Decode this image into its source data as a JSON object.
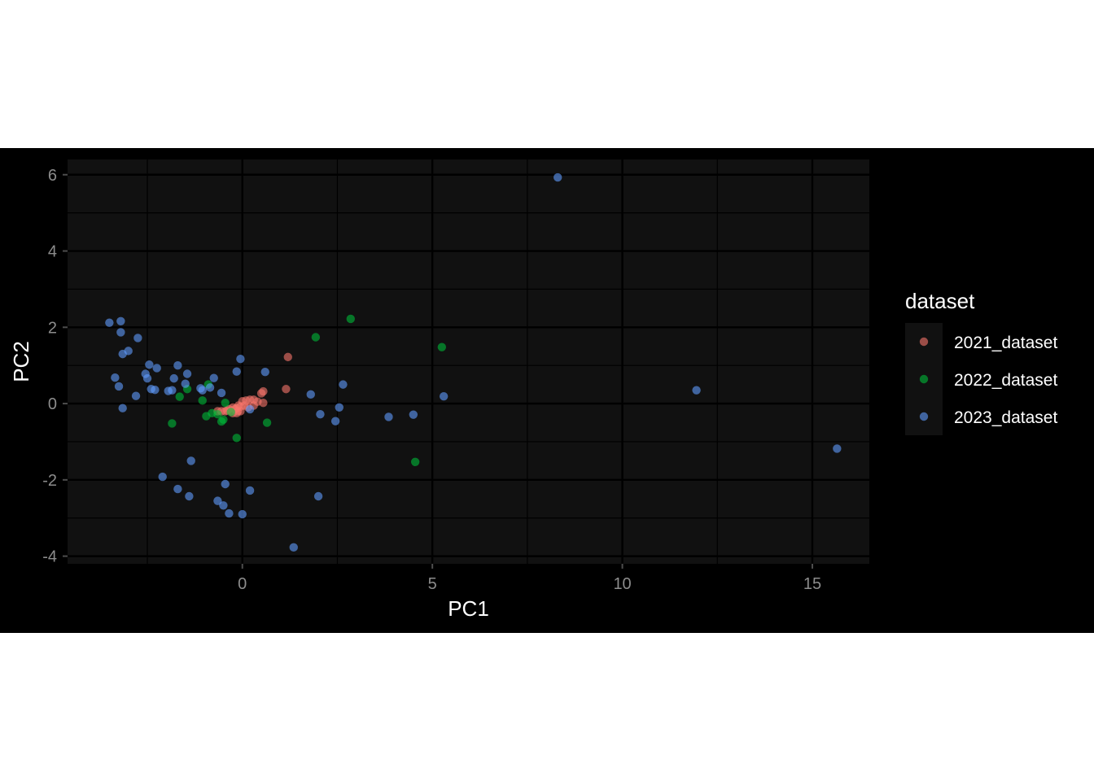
{
  "chart_data": {
    "type": "scatter",
    "xlabel": "PC1",
    "ylabel": "PC2",
    "xlim": [
      -4.6,
      16.5
    ],
    "ylim": [
      -4.2,
      6.4
    ],
    "x_ticks": [
      0,
      5,
      10,
      15
    ],
    "y_ticks": [
      -4,
      -2,
      0,
      2,
      4,
      6
    ],
    "x_tick_labels": [
      "0",
      "5",
      "10",
      "15"
    ],
    "y_tick_labels": [
      "-4",
      "-2",
      "0",
      "2",
      "4",
      "6"
    ],
    "grid": true,
    "background": "#000000",
    "panel_background": "#111111",
    "legend": {
      "title": "dataset",
      "position": "right"
    },
    "series": [
      {
        "name": "2021_dataset",
        "color": "#F8766D",
        "points": [
          [
            1.2,
            1.22
          ],
          [
            1.15,
            0.38
          ],
          [
            0.55,
            0.32
          ],
          [
            0.5,
            0.27
          ],
          [
            0.55,
            0.02
          ],
          [
            0.4,
            0.05
          ],
          [
            0.3,
            0.1
          ],
          [
            0.2,
            0.1
          ],
          [
            0.1,
            0.08
          ],
          [
            0.0,
            0.06
          ],
          [
            0.05,
            -0.05
          ],
          [
            -0.05,
            -0.08
          ],
          [
            -0.1,
            -0.05
          ],
          [
            -0.15,
            -0.12
          ],
          [
            -0.2,
            -0.15
          ],
          [
            -0.25,
            -0.1
          ],
          [
            -0.3,
            -0.2
          ],
          [
            -0.35,
            -0.15
          ],
          [
            -0.4,
            -0.18
          ],
          [
            -0.45,
            -0.2
          ],
          [
            -0.55,
            -0.2
          ],
          [
            -0.65,
            -0.2
          ],
          [
            -0.12,
            -0.2
          ],
          [
            -0.25,
            -0.25
          ],
          [
            0.15,
            -0.1
          ],
          [
            -0.05,
            -0.2
          ],
          [
            -0.15,
            -0.25
          ],
          [
            0.3,
            -0.05
          ]
        ]
      },
      {
        "name": "2022_dataset",
        "color": "#00BA38",
        "points": [
          [
            2.85,
            2.22
          ],
          [
            1.93,
            1.74
          ],
          [
            5.25,
            1.48
          ],
          [
            4.55,
            -1.53
          ],
          [
            0.65,
            -0.5
          ],
          [
            -0.15,
            -0.9
          ],
          [
            -1.85,
            -0.52
          ],
          [
            -1.65,
            0.18
          ],
          [
            -1.45,
            0.38
          ],
          [
            -0.9,
            0.5
          ],
          [
            -1.05,
            0.08
          ],
          [
            -0.95,
            -0.33
          ],
          [
            -0.8,
            -0.25
          ],
          [
            -0.55,
            -0.47
          ],
          [
            -0.5,
            -0.42
          ],
          [
            -0.45,
            0.02
          ],
          [
            -0.65,
            -0.28
          ],
          [
            -0.3,
            -0.22
          ]
        ]
      },
      {
        "name": "2023_dataset",
        "color": "#619CFF",
        "points": [
          [
            8.3,
            5.93
          ],
          [
            11.95,
            0.35
          ],
          [
            15.65,
            -1.18
          ],
          [
            5.3,
            0.19
          ],
          [
            4.5,
            -0.29
          ],
          [
            3.85,
            -0.35
          ],
          [
            2.65,
            0.5
          ],
          [
            2.55,
            -0.1
          ],
          [
            2.45,
            -0.46
          ],
          [
            2.05,
            -0.28
          ],
          [
            1.8,
            0.24
          ],
          [
            2.0,
            -2.43
          ],
          [
            1.35,
            -3.77
          ],
          [
            0.2,
            -2.28
          ],
          [
            0.0,
            -2.9
          ],
          [
            -0.35,
            -2.88
          ],
          [
            -0.5,
            -2.67
          ],
          [
            -0.45,
            -2.11
          ],
          [
            -0.65,
            -2.55
          ],
          [
            -1.4,
            -2.43
          ],
          [
            -1.7,
            -2.24
          ],
          [
            -2.1,
            -1.92
          ],
          [
            -1.35,
            -1.5
          ],
          [
            -3.5,
            2.12
          ],
          [
            -3.2,
            2.16
          ],
          [
            -3.2,
            1.87
          ],
          [
            -2.75,
            1.72
          ],
          [
            -3.15,
            1.3
          ],
          [
            -3.0,
            1.38
          ],
          [
            -3.35,
            0.68
          ],
          [
            -3.25,
            0.45
          ],
          [
            -3.15,
            -0.12
          ],
          [
            -2.8,
            0.2
          ],
          [
            -2.45,
            1.02
          ],
          [
            -2.25,
            0.93
          ],
          [
            -2.55,
            0.78
          ],
          [
            -2.5,
            0.66
          ],
          [
            -2.4,
            0.38
          ],
          [
            -2.3,
            0.36
          ],
          [
            -1.95,
            0.33
          ],
          [
            -1.85,
            0.35
          ],
          [
            -1.8,
            0.66
          ],
          [
            -1.7,
            1.0
          ],
          [
            -1.45,
            0.78
          ],
          [
            -1.5,
            0.52
          ],
          [
            -1.1,
            0.4
          ],
          [
            -1.05,
            0.35
          ],
          [
            -0.85,
            0.42
          ],
          [
            -0.75,
            0.67
          ],
          [
            -0.55,
            0.28
          ],
          [
            -0.15,
            0.84
          ],
          [
            -0.05,
            1.17
          ],
          [
            0.6,
            0.83
          ],
          [
            0.2,
            -0.15
          ]
        ]
      }
    ]
  }
}
